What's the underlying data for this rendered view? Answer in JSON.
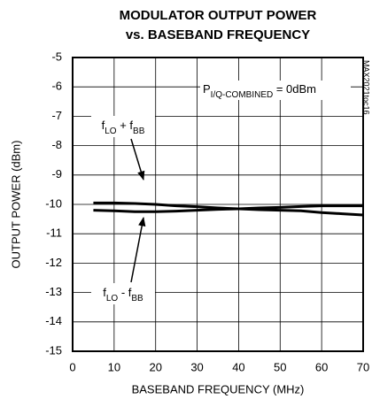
{
  "chart_data": {
    "type": "line",
    "title": [
      "MODULATOR OUTPUT POWER",
      "vs. BASEBAND FREQUENCY"
    ],
    "x_label": "BASEBAND FREQUENCY (MHz)",
    "y_label": "OUTPUT POWER (dBm)",
    "watermark": "MAX2021toc16",
    "x": [
      5,
      10,
      15,
      20,
      25,
      30,
      35,
      40,
      45,
      50,
      55,
      60,
      65,
      70
    ],
    "series": [
      {
        "name": [
          {
            "text": "f"
          },
          {
            "text": "LO",
            "sub": true
          },
          {
            "text": " + f"
          },
          {
            "text": "BB",
            "sub": true
          }
        ],
        "color": "#000000",
        "values": [
          -9.95,
          -9.95,
          -9.97,
          -10.0,
          -10.05,
          -10.08,
          -10.12,
          -10.15,
          -10.18,
          -10.2,
          -10.22,
          -10.28,
          -10.32,
          -10.36
        ]
      },
      {
        "name": [
          {
            "text": "f"
          },
          {
            "text": "LO",
            "sub": true
          },
          {
            "text": " - f"
          },
          {
            "text": "BB",
            "sub": true
          }
        ],
        "color": "#000000",
        "values": [
          -10.2,
          -10.22,
          -10.25,
          -10.25,
          -10.23,
          -10.2,
          -10.17,
          -10.15,
          -10.12,
          -10.1,
          -10.07,
          -10.05,
          -10.05,
          -10.05
        ]
      }
    ],
    "annotations": [
      {
        "parts": [
          {
            "text": "P"
          },
          {
            "text": "I/Q-COMBINED",
            "sub": true
          },
          {
            "text": " = 0dBm"
          }
        ]
      }
    ],
    "xlim": [
      0,
      70
    ],
    "xticks": [
      0,
      10,
      20,
      30,
      40,
      50,
      60,
      70
    ],
    "ylim": [
      -15,
      -5
    ],
    "yticks": [
      -15,
      -14,
      -13,
      -12,
      -11,
      -10,
      -9,
      -8,
      -7,
      -6,
      -5
    ],
    "grid": true
  }
}
